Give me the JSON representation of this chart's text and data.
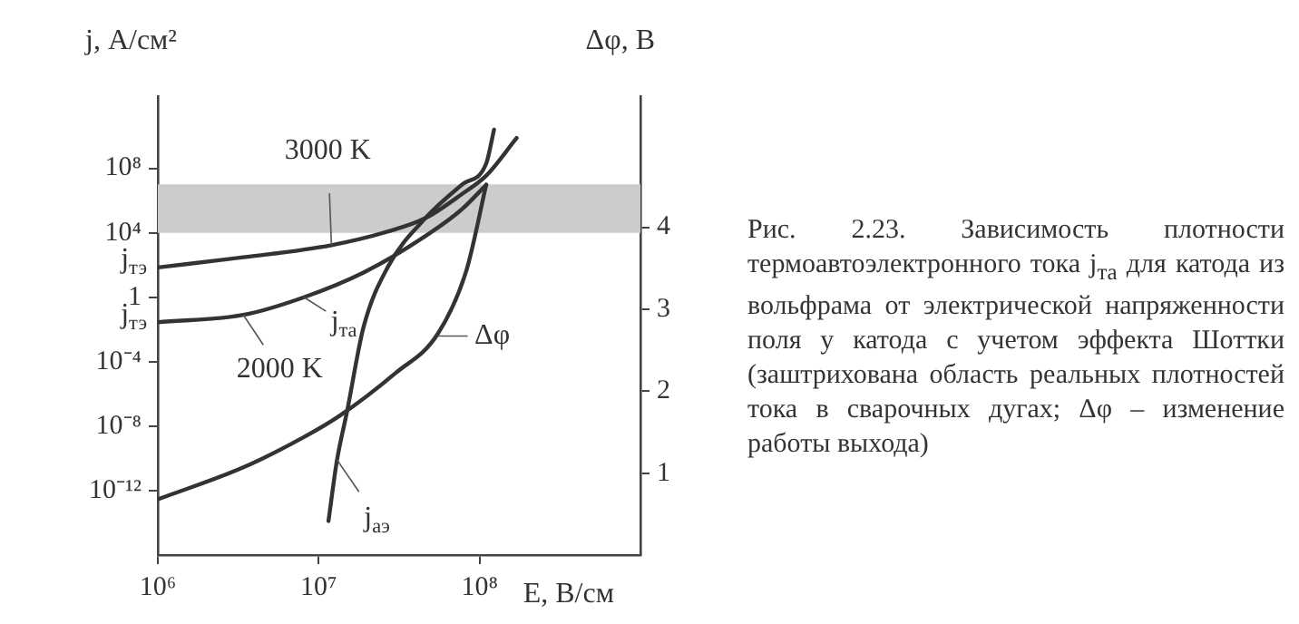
{
  "chart_data": {
    "type": "line",
    "ylabel": "j, А/см²",
    "y2label": "Δφ, В",
    "xlabel": "E, В/см",
    "log": "xy",
    "marker": "none",
    "grid": false,
    "legend": false,
    "xlim": [
      1000000,
      1000000000
    ],
    "xticks": [
      {
        "value": 1000000,
        "label": "10⁶"
      },
      {
        "value": 10000000,
        "label": "10⁷"
      },
      {
        "value": 100000000,
        "label": "10⁸"
      }
    ],
    "ylim": [
      1e-16,
      3000000000000.0
    ],
    "yticks": [
      {
        "value": 1e-12,
        "label": "10⁻¹²"
      },
      {
        "value": 1e-08,
        "label": "10⁻⁸"
      },
      {
        "value": 0.0001,
        "label": "10⁻⁴"
      },
      1,
      {
        "value": 10000,
        "label": "10⁴"
      },
      {
        "value": 100000000,
        "label": "10⁸"
      }
    ],
    "y2lim": [
      0,
      5.6
    ],
    "y2ticks": [
      1,
      2,
      3,
      4
    ],
    "bands": [
      {
        "axis": "y",
        "from": 10000,
        "to": 10000000,
        "color": "#cccccc"
      }
    ],
    "series": [
      {
        "color": "#333333",
        "x": [
          1000000,
          3400000,
          12000000,
          27000000,
          46000000,
          78000000,
          110000000,
          170000000
        ],
        "values": [
          70,
          300,
          1700,
          12000,
          80000,
          2600000,
          35000000,
          7600000000
        ]
      },
      {
        "color": "#333333",
        "x": [
          1000000,
          3400000,
          8100000,
          19000000,
          46000000,
          78000000,
          110000000
        ],
        "values": [
          0.028,
          0.08,
          1,
          34,
          6200,
          300000,
          9500000
        ]
      },
      {
        "color": "#333333",
        "axis": "y2",
        "x": [
          1000000,
          3400000,
          8100000,
          13500000,
          30000000,
          55000000,
          83000000,
          110000000
        ],
        "values": [
          0.68,
          1.07,
          1.44,
          1.7,
          2.22,
          2.7,
          3.48,
          4.52
        ]
      },
      {
        "color": "#333333",
        "x": [
          11500000,
          13000000,
          15000000,
          19000000,
          27000000,
          46000000,
          78000000,
          110000000,
          123000000
        ],
        "values": [
          1.3e-14,
          8e-11,
          8e-08,
          0.014,
          80,
          80000,
          10000000,
          200000000,
          25000000000
        ]
      }
    ],
    "annotations": [
      {
        "text": "3000 K",
        "x": 12000000,
        "y": 1700
      },
      {
        "text": "2000 K",
        "x": 3400000,
        "y": 0.08
      },
      {
        "text": "j$_{та}$",
        "x": 8100000,
        "y": 1
      },
      {
        "text": "j$_{тэ}$",
        "x": 1000000,
        "y": 70
      },
      {
        "text": "j$_{тэ}$",
        "x": 1000000,
        "y": 0.028
      },
      {
        "text": "Δφ",
        "x": 55000000,
        "y": 0.0039
      },
      {
        "text": "j$_{аэ}$",
        "x": 13000000,
        "y": 8e-11
      },
      "Рис. 2.23. Зависимость плотности термоавтоэлектронного тока j$_{та}$ для катода из вольфрама от электрической напряженности поля у катода с учетом эффекта Шоттки (заштрихована область реальных плотностей тока в сварочных дугах; Δφ – изменение работы выхода)"
    ]
  }
}
